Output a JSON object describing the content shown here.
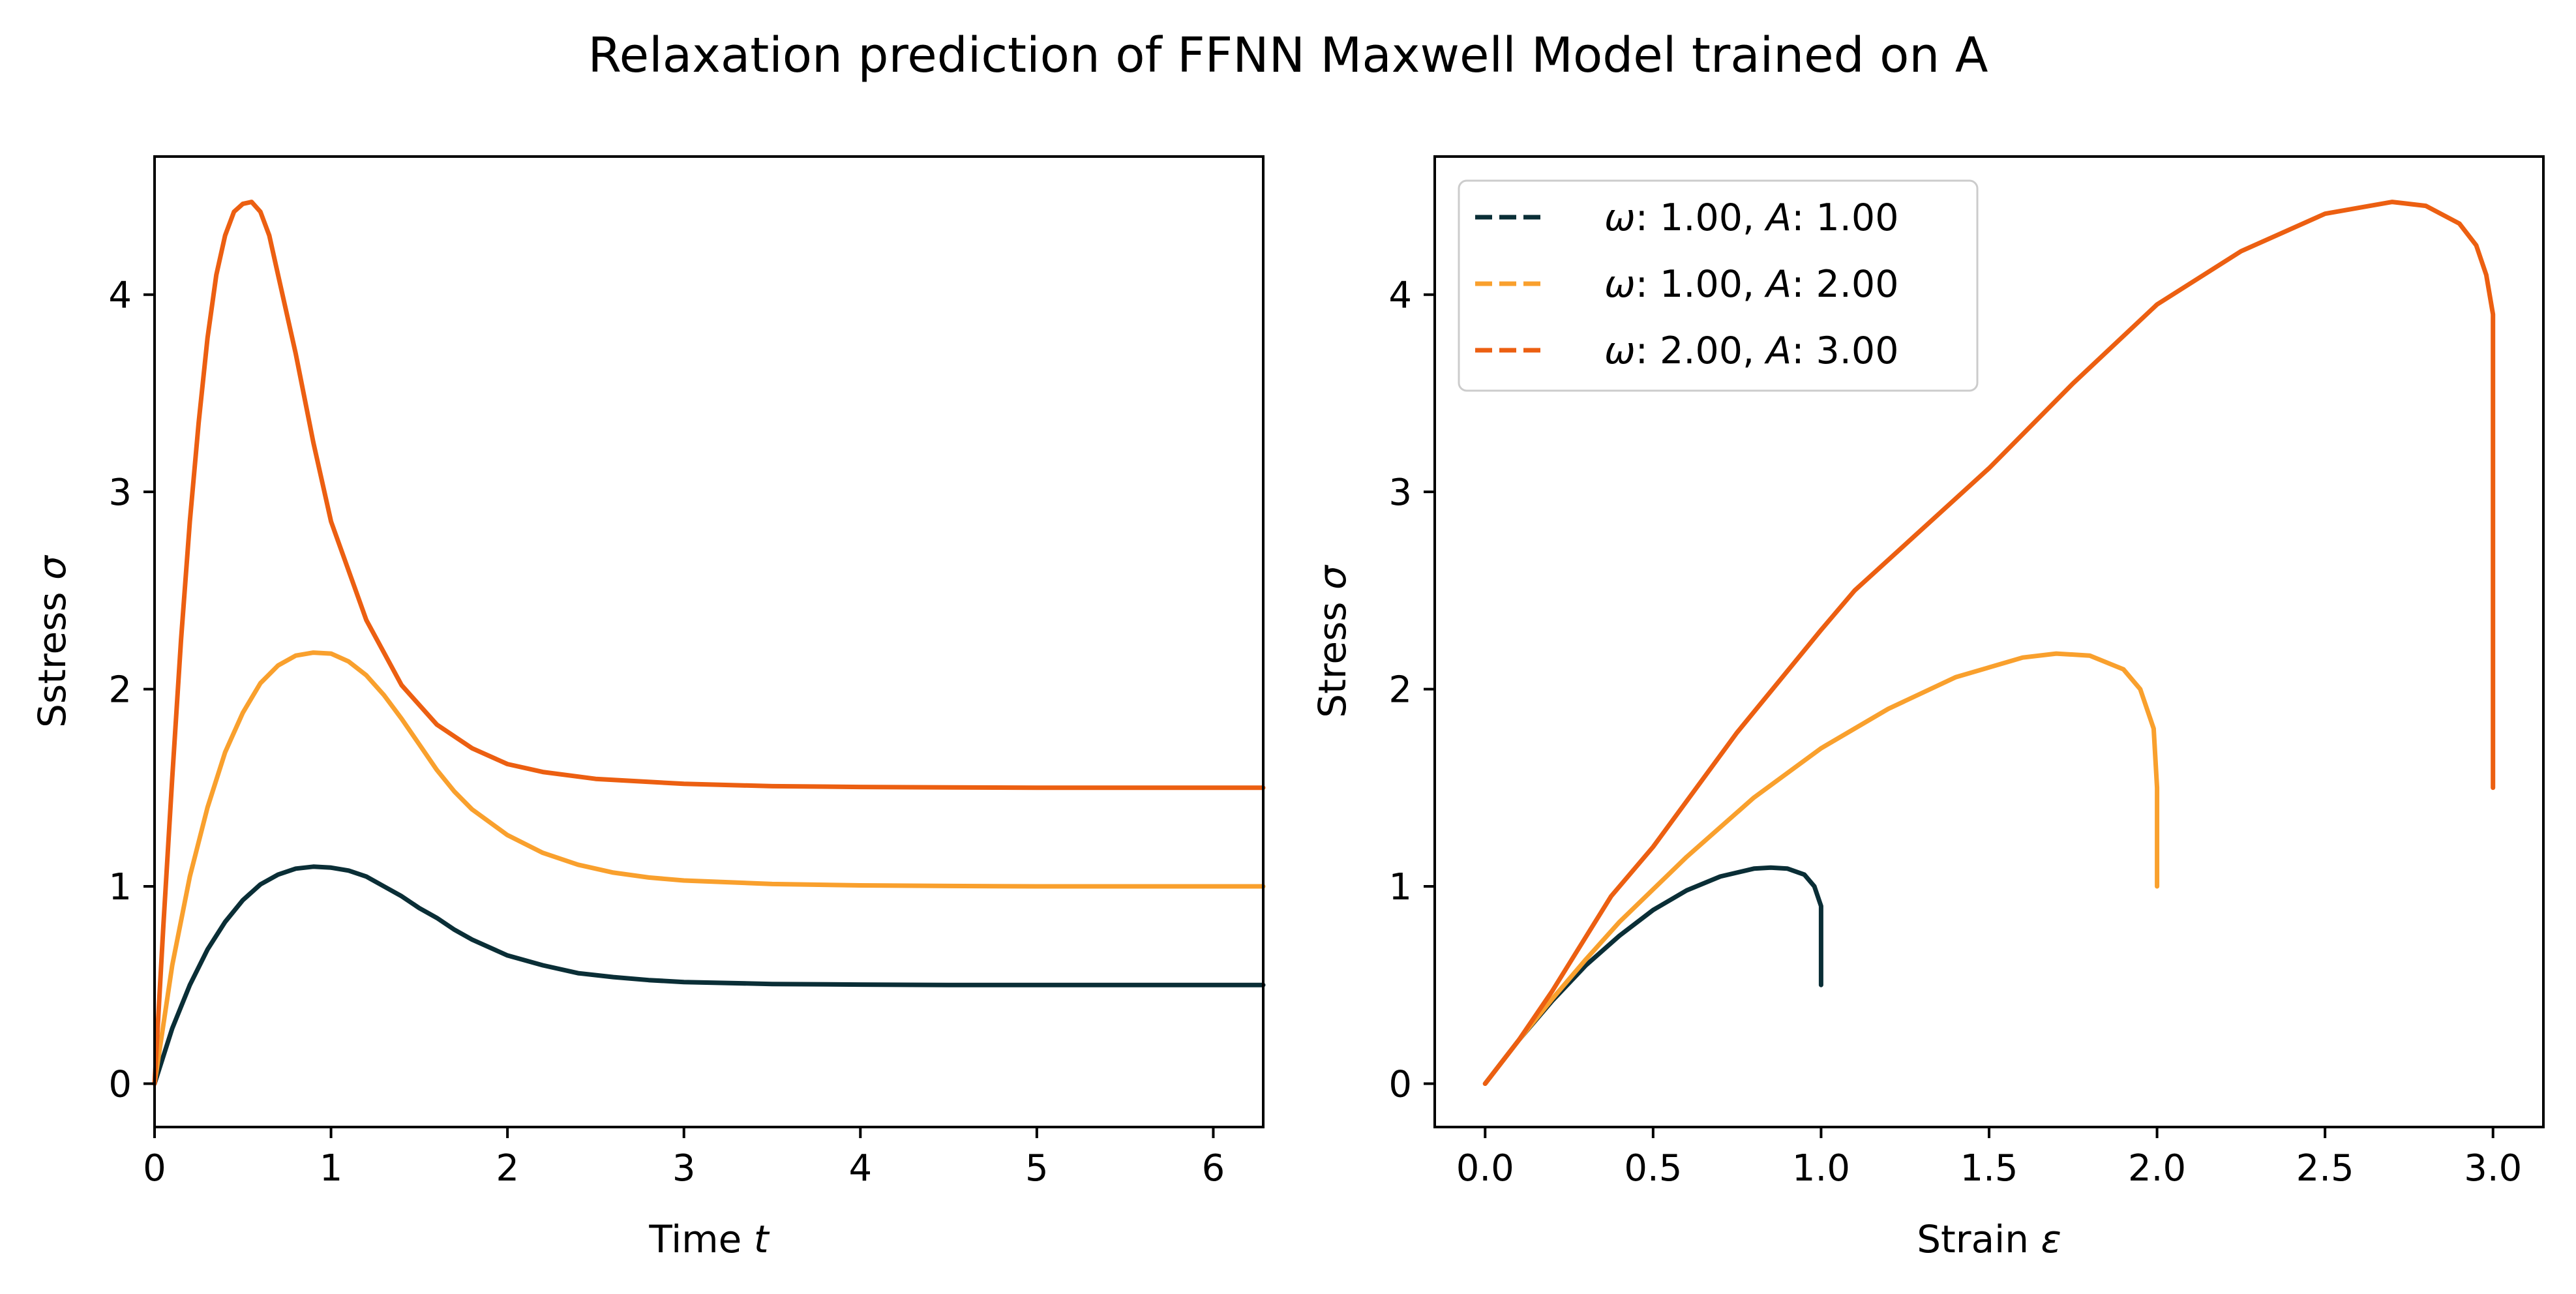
{
  "figure": {
    "title": "Relaxation prediction of FFNN Maxwell Model trained on A"
  },
  "colors": {
    "series_1": "#0a2e36",
    "series_2": "#f9a02d",
    "series_3": "#ec5f11"
  },
  "chart_data": [
    {
      "type": "line",
      "xlabel": "Time",
      "xlabel_symbol": "t",
      "ylabel": "Sstress",
      "ylabel_symbol": "σ",
      "xlim": [
        0,
        6.283
      ],
      "ylim": [
        -0.22,
        4.7
      ],
      "xticks": [
        0,
        1,
        2,
        3,
        4,
        5,
        6
      ],
      "yticks": [
        0,
        1,
        2,
        3,
        4
      ],
      "grid": false,
      "series": [
        {
          "style": "solid",
          "color": "#0a2e36",
          "x": [
            0,
            0.1,
            0.2,
            0.3,
            0.4,
            0.5,
            0.6,
            0.7,
            0.8,
            0.9,
            1.0,
            1.1,
            1.2,
            1.3,
            1.4,
            1.5,
            1.6,
            1.7,
            1.8,
            2.0,
            2.2,
            2.4,
            2.6,
            2.8,
            3.0,
            3.5,
            4.0,
            4.5,
            5.0,
            5.5,
            6.0,
            6.283
          ],
          "y": [
            0,
            0.28,
            0.5,
            0.68,
            0.82,
            0.93,
            1.01,
            1.06,
            1.09,
            1.1,
            1.095,
            1.08,
            1.05,
            1.0,
            0.95,
            0.89,
            0.84,
            0.78,
            0.73,
            0.65,
            0.6,
            0.56,
            0.54,
            0.525,
            0.515,
            0.505,
            0.502,
            0.5,
            0.5,
            0.5,
            0.5,
            0.5
          ]
        },
        {
          "style": "solid",
          "color": "#f9a02d",
          "x": [
            0,
            0.1,
            0.2,
            0.3,
            0.4,
            0.5,
            0.6,
            0.7,
            0.8,
            0.9,
            1.0,
            1.1,
            1.2,
            1.3,
            1.4,
            1.5,
            1.6,
            1.7,
            1.8,
            2.0,
            2.2,
            2.4,
            2.6,
            2.8,
            3.0,
            3.5,
            4.0,
            4.5,
            5.0,
            5.5,
            6.0,
            6.283
          ],
          "y": [
            0,
            0.6,
            1.05,
            1.4,
            1.68,
            1.88,
            2.03,
            2.12,
            2.17,
            2.185,
            2.18,
            2.14,
            2.07,
            1.97,
            1.85,
            1.72,
            1.59,
            1.48,
            1.39,
            1.26,
            1.17,
            1.11,
            1.07,
            1.045,
            1.03,
            1.012,
            1.005,
            1.002,
            1.0,
            1.0,
            1.0,
            1.0
          ]
        },
        {
          "style": "solid",
          "color": "#ec5f11",
          "x": [
            0,
            0.05,
            0.1,
            0.15,
            0.2,
            0.25,
            0.3,
            0.35,
            0.4,
            0.45,
            0.5,
            0.55,
            0.6,
            0.65,
            0.7,
            0.8,
            0.9,
            1.0,
            1.2,
            1.4,
            1.6,
            1.8,
            2.0,
            2.2,
            2.5,
            3.0,
            3.5,
            4.0,
            4.5,
            5.0,
            6.0,
            6.283
          ],
          "y": [
            0,
            0.8,
            1.55,
            2.25,
            2.85,
            3.35,
            3.78,
            4.1,
            4.3,
            4.42,
            4.46,
            4.47,
            4.42,
            4.3,
            4.1,
            3.7,
            3.25,
            2.85,
            2.35,
            2.02,
            1.82,
            1.7,
            1.62,
            1.58,
            1.545,
            1.52,
            1.508,
            1.504,
            1.502,
            1.5,
            1.5,
            1.5
          ]
        }
      ]
    },
    {
      "type": "line",
      "xlabel": "Strain",
      "xlabel_symbol": "ε",
      "ylabel": "Stress",
      "ylabel_symbol": "σ",
      "xlim": [
        -0.15,
        3.15
      ],
      "ylim": [
        -0.22,
        4.7
      ],
      "xticks": [
        0.0,
        0.5,
        1.0,
        1.5,
        2.0,
        2.5,
        3.0
      ],
      "xticklabels": [
        "0.0",
        "0.5",
        "1.0",
        "1.5",
        "2.0",
        "2.5",
        "3.0"
      ],
      "yticks": [
        0,
        1,
        2,
        3,
        4
      ],
      "grid": false,
      "legend_position": "top-left",
      "legend": [
        {
          "omega_symbol": "ω",
          "omega_value": ": 1.00, ",
          "A_symbol": "A",
          "A_value": ": 1.00",
          "color": "#0a2e36",
          "style": "dashed"
        },
        {
          "omega_symbol": "ω",
          "omega_value": ": 1.00, ",
          "A_symbol": "A",
          "A_value": ": 2.00",
          "color": "#f9a02d",
          "style": "dashed"
        },
        {
          "omega_symbol": "ω",
          "omega_value": ": 2.00, ",
          "A_symbol": "A",
          "A_value": ": 3.00",
          "color": "#ec5f11",
          "style": "dashed"
        }
      ],
      "series": [
        {
          "style": "solid",
          "color": "#0a2e36",
          "x": [
            0,
            0.05,
            0.1,
            0.2,
            0.3,
            0.4,
            0.5,
            0.6,
            0.7,
            0.8,
            0.85,
            0.9,
            0.95,
            0.98,
            1.0,
            1.0,
            1.0
          ],
          "y": [
            0,
            0.11,
            0.22,
            0.42,
            0.6,
            0.75,
            0.88,
            0.98,
            1.05,
            1.09,
            1.095,
            1.09,
            1.06,
            1.0,
            0.9,
            0.7,
            0.5
          ]
        },
        {
          "style": "solid",
          "color": "#f9a02d",
          "x": [
            0,
            0.1,
            0.2,
            0.3,
            0.4,
            0.6,
            0.8,
            1.0,
            1.2,
            1.4,
            1.6,
            1.7,
            1.8,
            1.9,
            1.95,
            1.99,
            2.0,
            2.0
          ],
          "y": [
            0,
            0.22,
            0.43,
            0.63,
            0.82,
            1.15,
            1.45,
            1.7,
            1.9,
            2.06,
            2.16,
            2.18,
            2.17,
            2.1,
            2.0,
            1.8,
            1.5,
            1.0
          ]
        },
        {
          "style": "solid",
          "color": "#ec5f11",
          "x": [
            0,
            0.1,
            0.2,
            0.375,
            0.5,
            0.75,
            1.0,
            1.1,
            1.5,
            1.75,
            2.0,
            2.25,
            2.5,
            2.7,
            2.8,
            2.9,
            2.95,
            2.98,
            3.0,
            3.0
          ],
          "y": [
            0,
            0.22,
            0.47,
            0.95,
            1.2,
            1.78,
            2.3,
            2.5,
            3.12,
            3.55,
            3.95,
            4.22,
            4.41,
            4.47,
            4.45,
            4.36,
            4.25,
            4.1,
            3.9,
            1.5
          ]
        }
      ]
    }
  ]
}
